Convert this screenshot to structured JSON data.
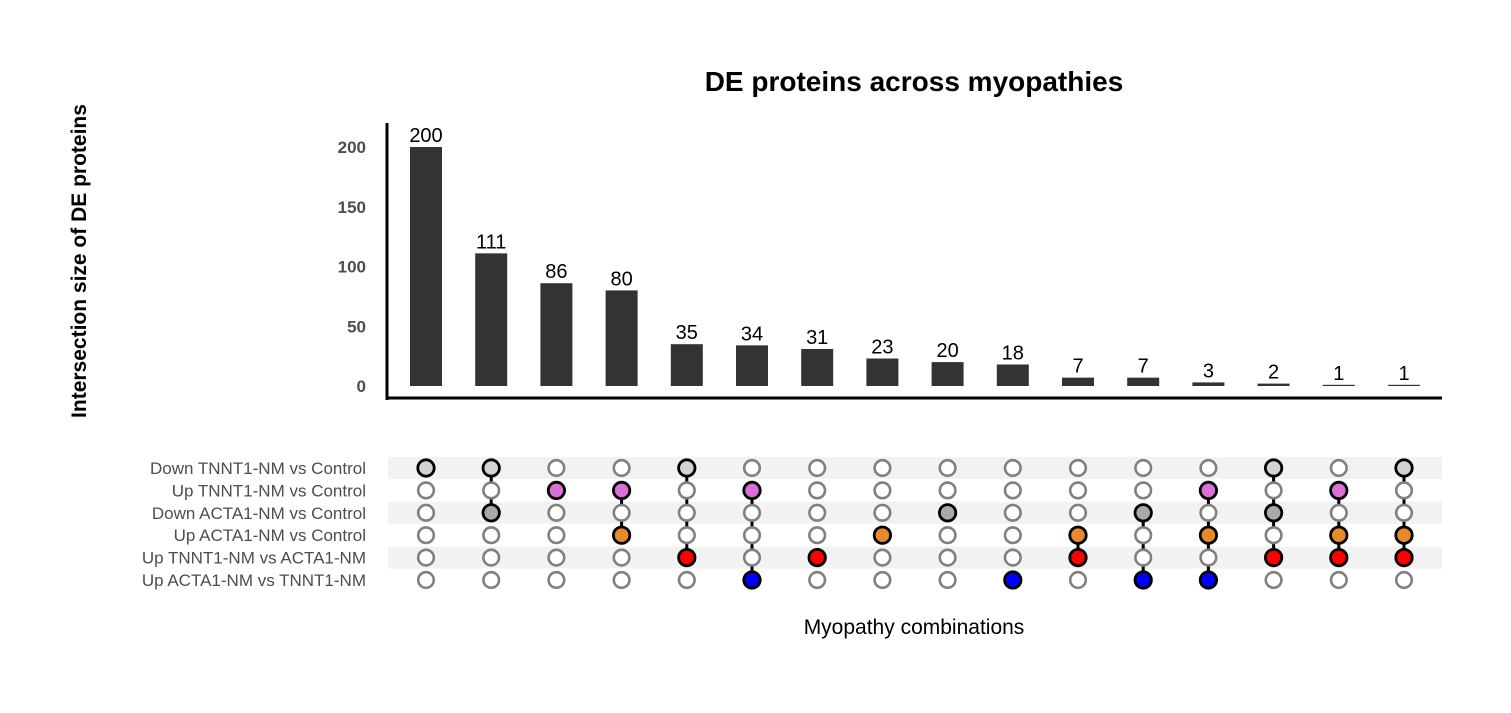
{
  "chart_data": {
    "type": "bar",
    "title": "DE proteins across myopathies",
    "ylabel": "Intersection size of DE proteins",
    "xlabel": "Myopathy combinations",
    "ylim": [
      0,
      220
    ],
    "yticks": [
      0,
      50,
      100,
      150,
      200
    ],
    "sets": [
      {
        "name": "Down TNNT1-NM vs Control",
        "color": "#d3d3d3"
      },
      {
        "name": "Up TNNT1-NM vs Control",
        "color": "#da70d6"
      },
      {
        "name": "Down ACTA1-NM vs Control",
        "color": "#a9a9a9"
      },
      {
        "name": "Up ACTA1-NM vs Control",
        "color": "#e88a2c"
      },
      {
        "name": "Up TNNT1-NM vs ACTA1-NM",
        "color": "#ff0000"
      },
      {
        "name": "Up ACTA1-NM vs TNNT1-NM",
        "color": "#0000ff"
      }
    ],
    "values": [
      200,
      111,
      86,
      80,
      35,
      34,
      31,
      23,
      20,
      18,
      7,
      7,
      3,
      2,
      1,
      1
    ],
    "intersections": [
      [
        0
      ],
      [
        0,
        2
      ],
      [
        1
      ],
      [
        1,
        3
      ],
      [
        0,
        4
      ],
      [
        1,
        5
      ],
      [
        4
      ],
      [
        3
      ],
      [
        2
      ],
      [
        5
      ],
      [
        3,
        4
      ],
      [
        2,
        5
      ],
      [
        1,
        3,
        5
      ],
      [
        0,
        2,
        4
      ],
      [
        1,
        3,
        4
      ],
      [
        0,
        3,
        4
      ]
    ],
    "bar_color": "#333333",
    "inactive_color": "#808080"
  }
}
